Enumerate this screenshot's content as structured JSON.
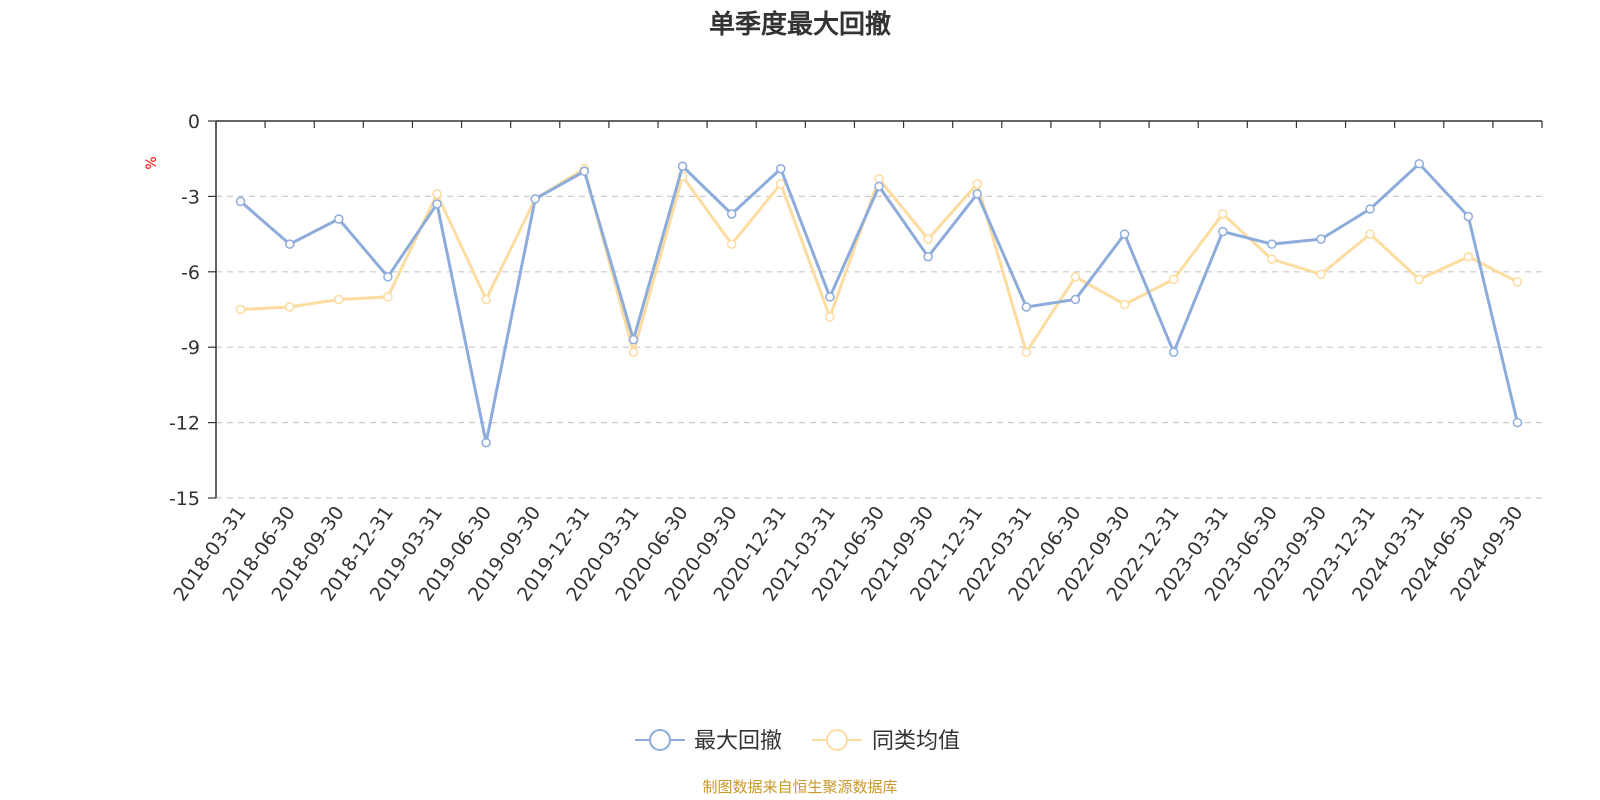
{
  "chart_data": {
    "type": "line",
    "title": "单季度最大回撤",
    "ylabel": "%",
    "xlabel": "",
    "ylim": [
      -15,
      0
    ],
    "yticks": [
      0,
      -3,
      -6,
      -9,
      -12,
      -15
    ],
    "grid": true,
    "legend_position": "bottom-center",
    "categories": [
      "2018-03-31",
      "2018-06-30",
      "2018-09-30",
      "2018-12-31",
      "2019-03-31",
      "2019-06-30",
      "2019-09-30",
      "2019-12-31",
      "2020-03-31",
      "2020-06-30",
      "2020-09-30",
      "2020-12-31",
      "2021-03-31",
      "2021-06-30",
      "2021-09-30",
      "2021-12-31",
      "2022-03-31",
      "2022-06-30",
      "2022-09-30",
      "2022-12-31",
      "2023-03-31",
      "2023-06-30",
      "2023-09-30",
      "2023-12-31",
      "2024-03-31",
      "2024-06-30",
      "2024-09-30"
    ],
    "series": [
      {
        "name": "最大回撤",
        "color": "#8eacdb",
        "values": [
          -3.2,
          -4.9,
          -3.9,
          -6.2,
          -3.3,
          -12.8,
          -3.1,
          -2.0,
          -8.7,
          -1.8,
          -3.7,
          -1.9,
          -7.0,
          -2.6,
          -5.4,
          -2.9,
          -7.4,
          -7.1,
          -4.5,
          -9.2,
          -4.4,
          -4.9,
          -4.7,
          -3.5,
          -1.7,
          -3.8,
          -12.0
        ]
      },
      {
        "name": "同类均值",
        "color": "#fcdca0",
        "values": [
          -7.5,
          -7.4,
          -7.1,
          -7.0,
          -2.9,
          -7.1,
          -3.1,
          -1.9,
          -9.2,
          -2.2,
          -4.9,
          -2.5,
          -7.8,
          -2.3,
          -4.7,
          -2.5,
          -9.2,
          -6.2,
          -7.3,
          -6.3,
          -3.7,
          -5.5,
          -6.1,
          -4.5,
          -6.3,
          -5.4,
          -6.4
        ]
      }
    ]
  },
  "source_note": "制图数据来自恒生聚源数据库"
}
